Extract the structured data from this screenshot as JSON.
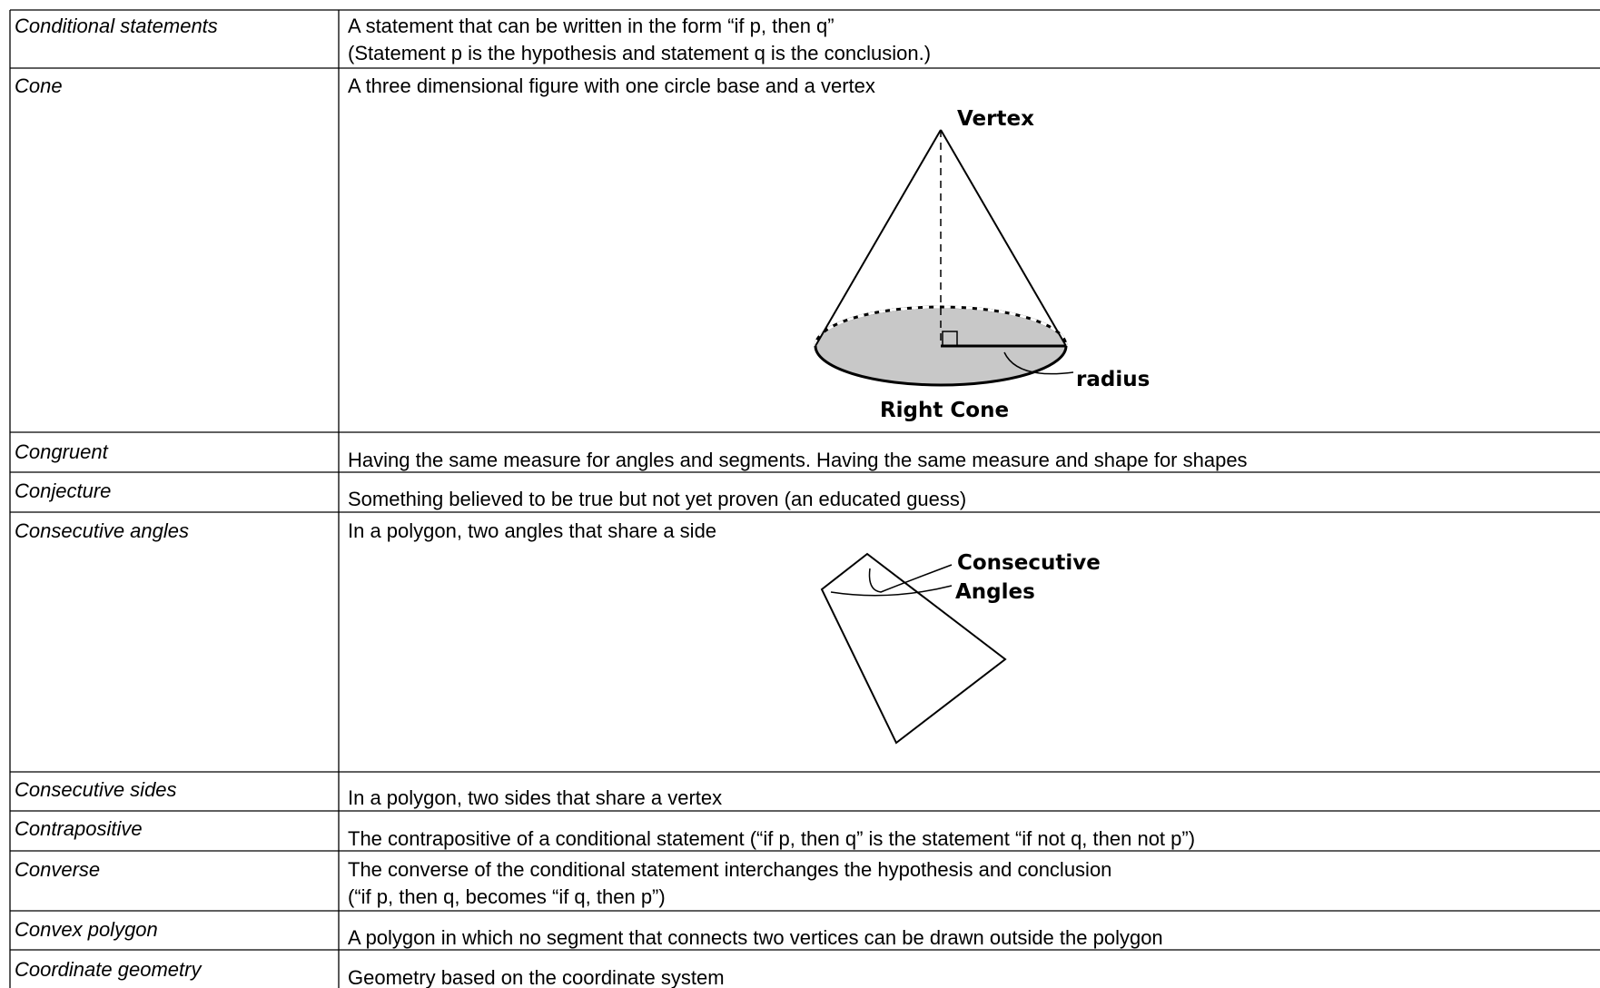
{
  "rows": [
    {
      "term": "Conditional statements",
      "definition": [
        "A statement that can be written in the form “if p, then q”",
        "(Statement p is the hypothesis and statement q is the  conclusion.)"
      ]
    },
    {
      "term": "Cone",
      "definition": [
        "A three dimensional figure with one circle base and a vertex"
      ],
      "figure": {
        "labels": [
          "Vertex",
          "radius",
          "Right Cone"
        ]
      }
    },
    {
      "term": "Congruent",
      "definition": [
        "Having the same measure for angles and segments. Having the same measure and shape for shapes"
      ]
    },
    {
      "term": "Conjecture",
      "definition": [
        "Something believed to be true but not yet proven   (an educated guess)"
      ]
    },
    {
      "term": "Consecutive angles",
      "definition": [
        "In a polygon, two angles that share a side"
      ],
      "figure": {
        "labels": [
          "Consecutive",
          "Angles"
        ]
      }
    },
    {
      "term": "Consecutive sides",
      "definition": [
        "In a polygon, two sides that share a vertex"
      ]
    },
    {
      "term": "Contrapositive",
      "definition": [
        "The contrapositive of a conditional statement  (“if p, then q” is the statement “if not q, then not p”)"
      ]
    },
    {
      "term": "Converse",
      "definition": [
        "The converse of the conditional statement interchanges the hypothesis and conclusion",
        " (“if p, then q, becomes “if q, then p”)"
      ]
    },
    {
      "term": "Convex polygon",
      "definition": [
        "A polygon in which no segment that connects two vertices can be drawn outside the polygon"
      ]
    },
    {
      "term": "Coordinate geometry",
      "definition": [
        "Geometry based on the coordinate system"
      ]
    }
  ]
}
